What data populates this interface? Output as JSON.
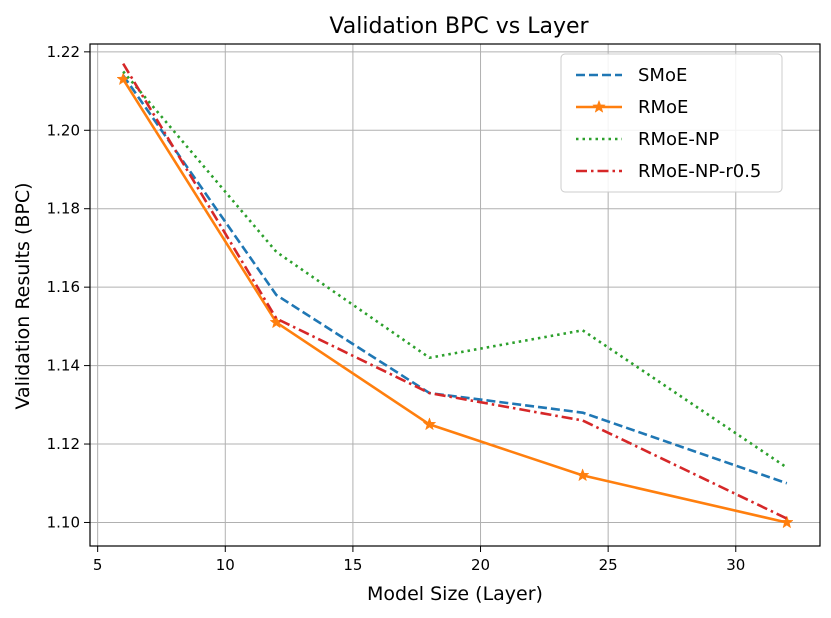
{
  "chart_data": {
    "type": "line",
    "title": "Validation BPC vs Layer",
    "xlabel": "Model Size (Layer)",
    "ylabel": "Validation Results (BPC)",
    "xlim": [
      4.7,
      33.3
    ],
    "ylim": [
      1.094,
      1.222
    ],
    "xticks": [
      5,
      10,
      15,
      20,
      25,
      30
    ],
    "xtick_labels": [
      "5",
      "10",
      "15",
      "20",
      "25",
      "30"
    ],
    "yticks": [
      1.1,
      1.12,
      1.14,
      1.16,
      1.18,
      1.2,
      1.22
    ],
    "ytick_labels": [
      "1.10",
      "1.12",
      "1.14",
      "1.16",
      "1.18",
      "1.20",
      "1.22"
    ],
    "grid": true,
    "legend_position": "top-right",
    "series": [
      {
        "name": "SMoE",
        "color": "#1f77b4",
        "style": "dashed",
        "marker": "none",
        "x": [
          6,
          12,
          18,
          24,
          32
        ],
        "y": [
          1.214,
          1.158,
          1.133,
          1.128,
          1.11
        ]
      },
      {
        "name": "RMoE",
        "color": "#ff7f0e",
        "style": "solid",
        "marker": "star",
        "x": [
          6,
          12,
          18,
          24,
          32
        ],
        "y": [
          1.213,
          1.151,
          1.125,
          1.112,
          1.1
        ]
      },
      {
        "name": "RMoE-NP",
        "color": "#2ca02c",
        "style": "dotted",
        "marker": "none",
        "x": [
          6,
          12,
          18,
          24,
          32
        ],
        "y": [
          1.215,
          1.169,
          1.142,
          1.149,
          1.114
        ]
      },
      {
        "name": "RMoE-NP-r0.5",
        "color": "#d62728",
        "style": "dashdot",
        "marker": "none",
        "x": [
          6,
          12,
          18,
          24,
          32
        ],
        "y": [
          1.217,
          1.152,
          1.133,
          1.126,
          1.101
        ]
      }
    ]
  }
}
